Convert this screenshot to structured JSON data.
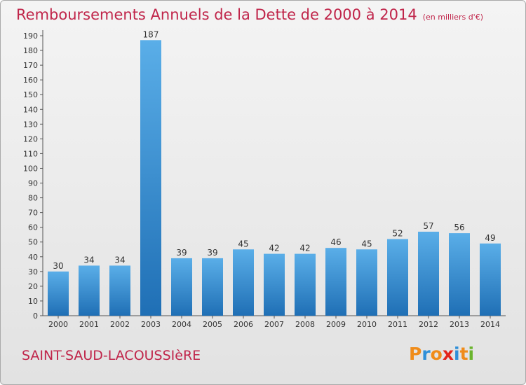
{
  "title": "Remboursements Annuels de la Dette de 2000 à 2014",
  "unit": "(en milliers d'€)",
  "municipality": "SAINT-SAUD-LACOUSSIèRE",
  "brand": {
    "letters": [
      "P",
      "r",
      "o",
      "x",
      "i",
      "t",
      "i"
    ],
    "colors": [
      "#f08c1a",
      "#2f8fd8",
      "#f08c1a",
      "#e3241b",
      "#2f8fd8",
      "#f08c1a",
      "#6ab42d"
    ]
  },
  "colors": {
    "bar_light": "#5aaee8",
    "bar_dark": "#1f6fb5",
    "title": "#c0254a"
  },
  "chart_data": {
    "type": "bar",
    "categories": [
      "2000",
      "2001",
      "2002",
      "2003",
      "2004",
      "2005",
      "2006",
      "2007",
      "2008",
      "2009",
      "2010",
      "2011",
      "2012",
      "2013",
      "2014"
    ],
    "values": [
      30,
      34,
      34,
      187,
      39,
      39,
      45,
      42,
      42,
      46,
      45,
      52,
      57,
      56,
      49
    ],
    "ylim": [
      0,
      190
    ],
    "yticks": [
      0,
      10,
      20,
      30,
      40,
      50,
      60,
      70,
      80,
      90,
      100,
      110,
      120,
      130,
      140,
      150,
      160,
      170,
      180,
      190
    ],
    "grid": false,
    "data_labels": true
  }
}
